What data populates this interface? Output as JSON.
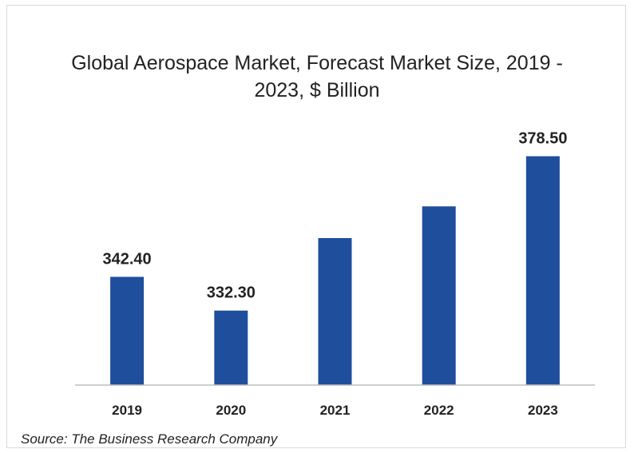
{
  "chart_data": {
    "type": "bar",
    "title_lines": [
      "Global Aerospace Market, Forecast Market Size, 2019 -",
      "2023, $ Billion"
    ],
    "categories": [
      "2019",
      "2020",
      "2021",
      "2022",
      "2023"
    ],
    "values": [
      342.4,
      332.3,
      354.0,
      363.5,
      378.5
    ],
    "data_labels": [
      "342.40",
      "332.30",
      "",
      "",
      "378.50"
    ],
    "ylim": [
      310,
      387
    ],
    "bar_color": "#1f4e9c",
    "grid": false
  },
  "source": "Source: The Business Research Company"
}
